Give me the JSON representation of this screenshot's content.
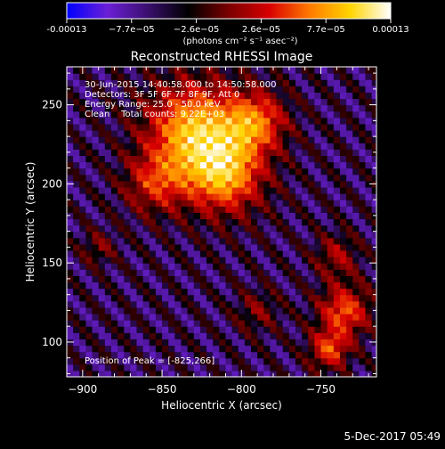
{
  "colorbar": {
    "tick_labels": [
      "-0.00013",
      "−7.7e−05",
      "−2.6e−05",
      "2.6e−05",
      "7.7e−05",
      "0.00013"
    ],
    "unit_label": "(photons cm⁻² s⁻¹ asec⁻²)",
    "range": [
      -0.00013,
      0.00013
    ]
  },
  "annotations": {
    "line1": "30-Jun-2015 14:40:58.000 to 14:50:58.000",
    "line2": "Detectors: 3F 5F 6F 7F 8F 9F, Att 0",
    "line3": "Energy Range: 25.0 - 50.0 keV",
    "line4": "Clean    Total counts: 9.22E+03",
    "peak": "Position of Peak = [-825,266]"
  },
  "footer": {
    "timestamp": "5-Dec-2017 05:49"
  },
  "chart_data": {
    "type": "heatmap",
    "title": "Reconstructed RHESSI Image",
    "xlabel": "Heliocentric X (arcsec)",
    "ylabel": "Heliocentric Y (arcsec)",
    "xlim": [
      -910,
      -715
    ],
    "ylim": [
      78,
      274
    ],
    "x_ticks": [
      -900,
      -850,
      -800,
      -750
    ],
    "y_ticks": [
      100,
      150,
      200,
      250
    ],
    "colormap": [
      "#0000ff",
      "#6b1fd6",
      "#3a0f6e",
      "#000000",
      "#7a0000",
      "#d80000",
      "#ff7a00",
      "#ffd400",
      "#ffffff"
    ],
    "peak_position": [
      -825,
      266
    ],
    "components": [
      {
        "x": -830,
        "y": 235,
        "sigma": 22,
        "amp": 1.0
      },
      {
        "x": -810,
        "y": 205,
        "sigma": 18,
        "amp": 0.85
      },
      {
        "x": -855,
        "y": 200,
        "sigma": 14,
        "amp": 0.55
      },
      {
        "x": -790,
        "y": 240,
        "sigma": 14,
        "amp": 0.7
      },
      {
        "x": -735,
        "y": 120,
        "sigma": 12,
        "amp": 0.75
      },
      {
        "x": -745,
        "y": 95,
        "sigma": 9,
        "amp": 0.7
      },
      {
        "x": -740,
        "y": 155,
        "sigma": 10,
        "amp": 0.45
      },
      {
        "x": -890,
        "y": 160,
        "sigma": 8,
        "amp": 0.35
      },
      {
        "x": -790,
        "y": 120,
        "sigma": 10,
        "amp": 0.35
      }
    ]
  }
}
